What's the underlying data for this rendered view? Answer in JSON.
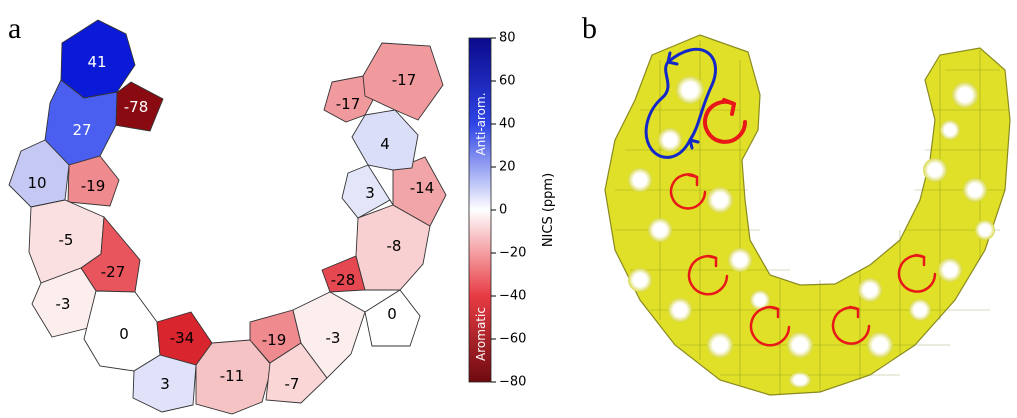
{
  "panel_a": {
    "letter": "a",
    "rings": [
      {
        "label": "41",
        "value": 41,
        "color": "#0a1ad6",
        "text_color": "#ffffff"
      },
      {
        "label": "-78",
        "value": -78,
        "color": "#8a0a12",
        "text_color": "#ffffff"
      },
      {
        "label": "27",
        "value": 27,
        "color": "#4a5ff0",
        "text_color": "#ffffff"
      },
      {
        "label": "10",
        "value": 10,
        "color": "#c5c8f3",
        "text_color": "#000000"
      },
      {
        "label": "-19",
        "value": -19,
        "color": "#ef8a8f",
        "text_color": "#000000"
      },
      {
        "label": "-5",
        "value": -5,
        "color": "#fbe0e1",
        "text_color": "#000000"
      },
      {
        "label": "-27",
        "value": -27,
        "color": "#e8555c",
        "text_color": "#000000"
      },
      {
        "label": "-3",
        "value": -3,
        "color": "#fdeeee",
        "text_color": "#000000"
      },
      {
        "label": "0",
        "value": 0,
        "color": "#ffffff",
        "text_color": "#000000"
      },
      {
        "label": "-34",
        "value": -34,
        "color": "#d8252e",
        "text_color": "#000000"
      },
      {
        "label": "3",
        "value": 3,
        "color": "#dfe2f9",
        "text_color": "#000000"
      },
      {
        "label": "-11",
        "value": -11,
        "color": "#f6c3c5",
        "text_color": "#000000"
      },
      {
        "label": "-19",
        "value": -19,
        "color": "#ef8a8f",
        "text_color": "#000000"
      },
      {
        "label": "-7",
        "value": -7,
        "color": "#fad6d7",
        "text_color": "#000000"
      },
      {
        "label": "-3",
        "value": -3,
        "color": "#fdeeee",
        "text_color": "#000000"
      },
      {
        "label": "0",
        "value": 0,
        "color": "#ffffff",
        "text_color": "#000000"
      },
      {
        "label": "-28",
        "value": -28,
        "color": "#e54850",
        "text_color": "#000000"
      },
      {
        "label": "-8",
        "value": -8,
        "color": "#f9d0d2",
        "text_color": "#000000"
      },
      {
        "label": "3",
        "value": 3,
        "color": "#e3e6f9",
        "text_color": "#000000"
      },
      {
        "label": "-14",
        "value": -14,
        "color": "#f2a5a8",
        "text_color": "#000000"
      },
      {
        "label": "4",
        "value": 4,
        "color": "#dadef8",
        "text_color": "#000000"
      },
      {
        "label": "-17",
        "value": -17,
        "color": "#f19a9e",
        "text_color": "#000000"
      },
      {
        "label": "-17",
        "value": -17,
        "color": "#f19a9e",
        "text_color": "#000000"
      }
    ]
  },
  "colorbar": {
    "title": "NICS (ppm)",
    "top_label": "Anti-arom.",
    "bottom_label": "Aromatic",
    "ticks": [
      "80",
      "60",
      "40",
      "20",
      "0",
      "−20",
      "−40",
      "−60",
      "−80"
    ],
    "range": [
      -80,
      80
    ],
    "colors": {
      "top": "#0a0a8c",
      "upper": "#2f45e6",
      "middle": "#ffffff",
      "lower": "#e83b43",
      "bottom": "#6e0a10"
    }
  },
  "panel_b": {
    "letter": "b",
    "colors": {
      "density": "#e6e61e",
      "aromatic_current": "#e81818",
      "antiaromatic_current": "#1428c8",
      "vector": "#2d8a2d"
    }
  }
}
